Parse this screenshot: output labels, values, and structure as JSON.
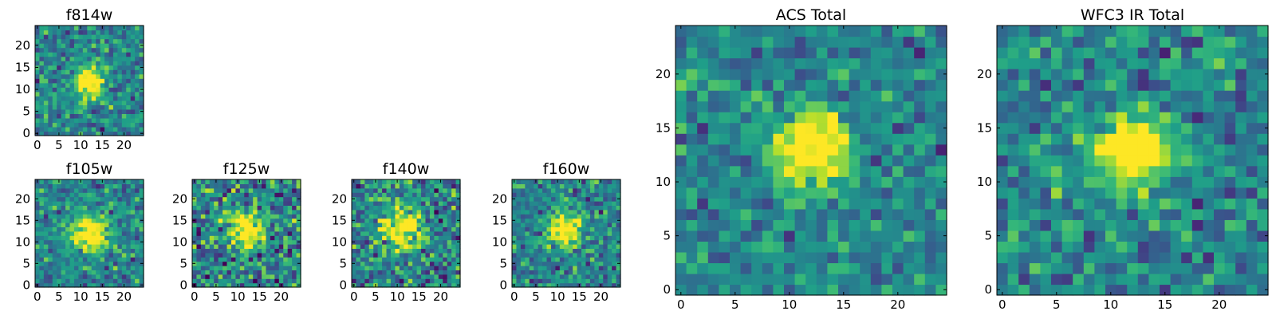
{
  "chart_data": [
    {
      "type": "heatmap",
      "title": "f814w",
      "xlim": [
        0,
        25
      ],
      "ylim": [
        0,
        25
      ],
      "xticks": [
        "0",
        "5",
        "10",
        "15",
        "20"
      ],
      "yticks": [
        "0",
        "5",
        "10",
        "15",
        "20"
      ],
      "grid": false,
      "colormap": "viridis",
      "source_center": [
        12,
        12
      ],
      "source_radius": 2.5,
      "noise": 0.3,
      "seed": 11
    },
    {
      "type": "heatmap",
      "title": "f105w",
      "xlim": [
        0,
        25
      ],
      "ylim": [
        0,
        25
      ],
      "xticks": [
        "0",
        "5",
        "10",
        "15",
        "20"
      ],
      "yticks": [
        "0",
        "5",
        "10",
        "15",
        "20"
      ],
      "grid": false,
      "colormap": "viridis",
      "source_center": [
        12,
        12
      ],
      "source_radius": 3,
      "noise": 0.28,
      "seed": 21
    },
    {
      "type": "heatmap",
      "title": "f125w",
      "xlim": [
        0,
        25
      ],
      "ylim": [
        0,
        25
      ],
      "xticks": [
        "0",
        "5",
        "10",
        "15",
        "20"
      ],
      "yticks": [
        "0",
        "5",
        "10",
        "15",
        "20"
      ],
      "grid": false,
      "colormap": "viridis",
      "source_center": [
        12,
        13
      ],
      "source_radius": 3,
      "noise": 0.4,
      "seed": 31
    },
    {
      "type": "heatmap",
      "title": "f140w",
      "xlim": [
        0,
        25
      ],
      "ylim": [
        0,
        25
      ],
      "xticks": [
        "0",
        "5",
        "10",
        "15",
        "20"
      ],
      "yticks": [
        "0",
        "5",
        "10",
        "15",
        "20"
      ],
      "grid": false,
      "colormap": "viridis",
      "source_center": [
        11,
        13
      ],
      "source_radius": 3,
      "noise": 0.38,
      "seed": 41
    },
    {
      "type": "heatmap",
      "title": "f160w",
      "xlim": [
        0,
        25
      ],
      "ylim": [
        0,
        25
      ],
      "xticks": [
        "0",
        "5",
        "10",
        "15",
        "20"
      ],
      "yticks": [
        "0",
        "5",
        "10",
        "15",
        "20"
      ],
      "grid": false,
      "colormap": "viridis",
      "source_center": [
        12,
        13
      ],
      "source_radius": 2.5,
      "noise": 0.3,
      "seed": 51
    },
    {
      "type": "heatmap",
      "title": "ACS Total",
      "xlim": [
        0,
        25
      ],
      "ylim": [
        0,
        25
      ],
      "xticks": [
        "0",
        "5",
        "10",
        "15",
        "20"
      ],
      "yticks": [
        "0",
        "5",
        "10",
        "15",
        "20"
      ],
      "grid": false,
      "colormap": "viridis",
      "source_center": [
        12,
        13
      ],
      "source_radius": 2.5,
      "noise": 0.25,
      "seed": 61
    },
    {
      "type": "heatmap",
      "title": "WFC3 IR Total",
      "xlim": [
        0,
        25
      ],
      "ylim": [
        0,
        25
      ],
      "xticks": [
        "0",
        "5",
        "10",
        "15",
        "20"
      ],
      "yticks": [
        "0",
        "5",
        "10",
        "15",
        "20"
      ],
      "grid": false,
      "colormap": "viridis",
      "source_center": [
        12,
        13
      ],
      "source_radius": 2.5,
      "noise": 0.28,
      "seed": 71
    }
  ]
}
